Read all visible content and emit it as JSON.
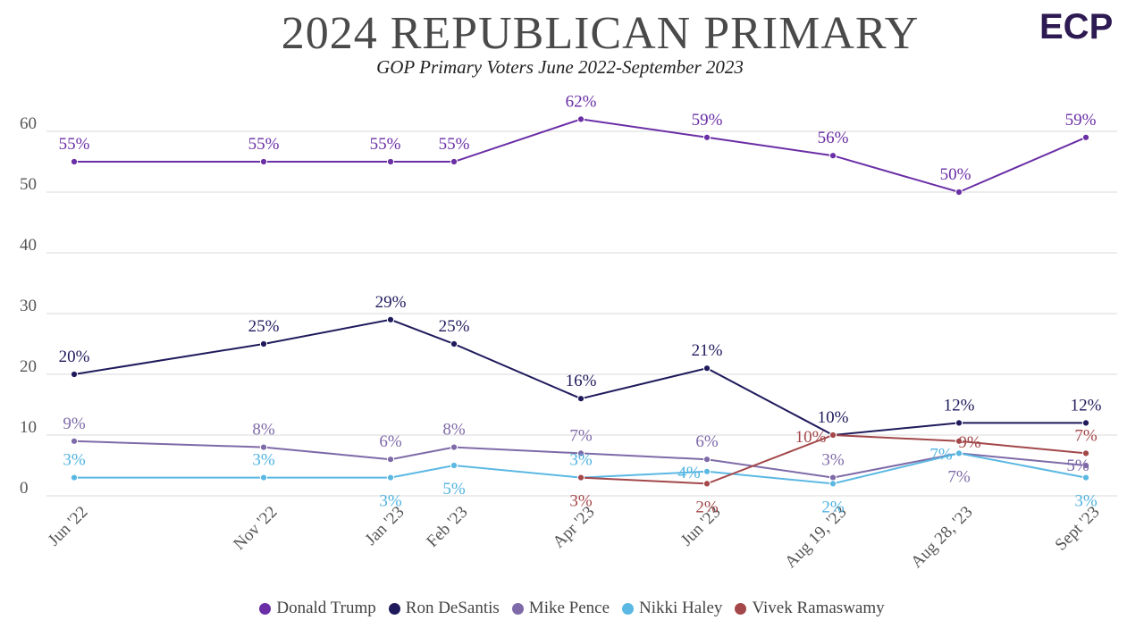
{
  "header": {
    "title": "2024 REPUBLICAN PRIMARY",
    "subtitle": "GOP Primary Voters June 2022-September 2023",
    "logo_text": "ECP"
  },
  "chart_data": {
    "type": "line",
    "title": "2024 REPUBLICAN PRIMARY",
    "subtitle": "GOP Primary Voters June 2022-September 2023",
    "categories": [
      "Jun '22",
      "Nov '22",
      "Jan '23",
      "Feb '23",
      "Apr '23",
      "Jun '23",
      "Aug 19, '23",
      "Aug 28, '23",
      "Sept '23"
    ],
    "ylim": [
      0,
      60
    ],
    "yticks": [
      0,
      10,
      20,
      30,
      40,
      50,
      60
    ],
    "grid": true,
    "legend_position": "bottom",
    "series": [
      {
        "name": "Donald Trump",
        "color": "#6a2ea6",
        "label_color": "#6a2ea6",
        "values": [
          55,
          55,
          55,
          55,
          62,
          59,
          56,
          50,
          59
        ]
      },
      {
        "name": "Ron DeSantis",
        "color": "#1f1a5c",
        "label_color": "#1f1a5c",
        "values": [
          20,
          25,
          29,
          25,
          16,
          21,
          10,
          12,
          12
        ]
      },
      {
        "name": "Mike Pence",
        "color": "#7e6aa8",
        "label_color": "#7e6aa8",
        "values": [
          9,
          8,
          6,
          8,
          7,
          6,
          3,
          7,
          5
        ]
      },
      {
        "name": "Nikki Haley",
        "color": "#5bb8e3",
        "label_color": "#4fb3e0",
        "values": [
          3,
          3,
          3,
          5,
          3,
          4,
          2,
          7,
          3
        ]
      },
      {
        "name": "Vivek Ramaswamy",
        "color": "#a3474a",
        "label_color": "#a3474a",
        "values": [
          null,
          null,
          null,
          null,
          3,
          2,
          10,
          9,
          7
        ]
      }
    ]
  }
}
